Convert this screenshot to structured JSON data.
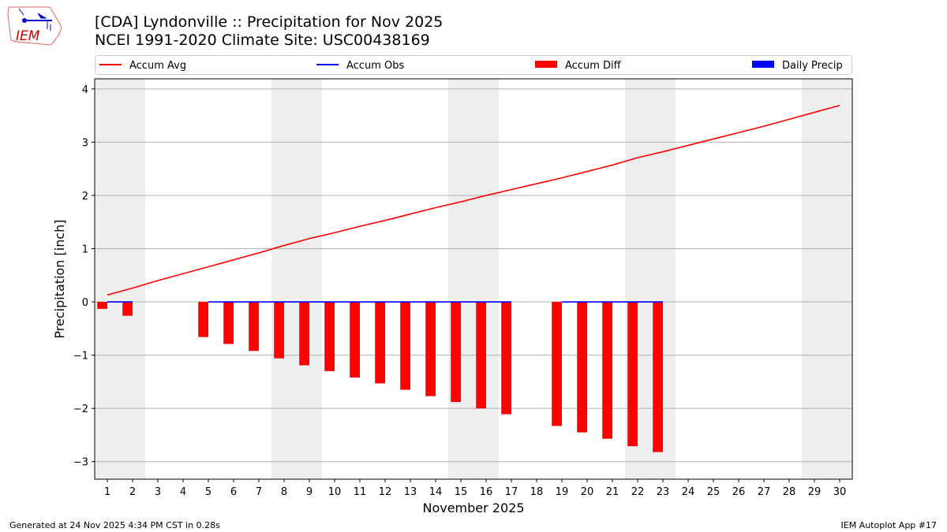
{
  "title": "[CDA] Lyndonville :: Precipitation for Nov 2025",
  "subtitle": "NCEI 1991-2020 Climate Site: USC00438169",
  "footer_left": "Generated at 24 Nov 2025 4:34 PM CST in 0.28s",
  "footer_right": "IEM Autoplot App #17",
  "logo": "IEM",
  "chart_data": {
    "type": "bar",
    "xlabel": "November 2025",
    "ylabel": "Precipitation [inch]",
    "xlim": [
      0.5,
      30.5
    ],
    "ylim": [
      -3.33,
      4.19
    ],
    "yticks": [
      -3,
      -2,
      -1,
      0,
      1,
      2,
      3,
      4
    ],
    "grid": "y",
    "legend_placement": "top",
    "weekend_days": [
      1,
      2,
      8,
      9,
      15,
      16,
      22,
      23,
      29,
      30
    ],
    "x": [
      1,
      2,
      3,
      4,
      5,
      6,
      7,
      8,
      9,
      10,
      11,
      12,
      13,
      14,
      15,
      16,
      17,
      18,
      19,
      20,
      21,
      22,
      23,
      24,
      25,
      26,
      27,
      28,
      29,
      30
    ],
    "series": [
      {
        "name": "Accum Avg",
        "type": "line",
        "color": "#ff0000",
        "values": [
          0.13,
          0.26,
          0.4,
          0.53,
          0.66,
          0.79,
          0.92,
          1.06,
          1.19,
          1.3,
          1.42,
          1.53,
          1.65,
          1.77,
          1.88,
          2.0,
          2.11,
          2.22,
          2.33,
          2.45,
          2.57,
          2.71,
          2.82,
          2.94,
          3.06,
          3.18,
          3.3,
          3.43,
          3.56,
          3.69
        ]
      },
      {
        "name": "Accum Obs",
        "type": "line",
        "color": "#0000ff",
        "values": [
          0,
          0,
          null,
          null,
          0,
          0,
          0,
          0,
          0,
          0,
          0,
          0,
          0,
          0,
          0,
          0,
          0,
          null,
          0,
          0,
          0,
          0,
          0,
          null,
          null,
          null,
          null,
          null,
          null,
          null
        ]
      },
      {
        "name": "Accum Diff",
        "type": "bar",
        "color": "#ff0000",
        "values": [
          -0.13,
          -0.26,
          null,
          null,
          -0.66,
          -0.79,
          -0.92,
          -1.06,
          -1.19,
          -1.3,
          -1.42,
          -1.53,
          -1.65,
          -1.77,
          -1.88,
          -2.0,
          -2.11,
          null,
          -2.33,
          -2.45,
          -2.57,
          -2.71,
          -2.82,
          null,
          null,
          null,
          null,
          null,
          null,
          null
        ]
      },
      {
        "name": "Daily Precip",
        "type": "bar",
        "color": "#0000ff",
        "values": [
          0,
          0,
          null,
          null,
          0,
          0,
          0,
          0,
          0,
          0,
          0,
          0,
          0,
          0,
          0,
          0,
          0,
          null,
          0,
          0,
          0,
          0,
          0,
          null,
          null,
          null,
          null,
          null,
          null,
          null
        ]
      }
    ]
  }
}
